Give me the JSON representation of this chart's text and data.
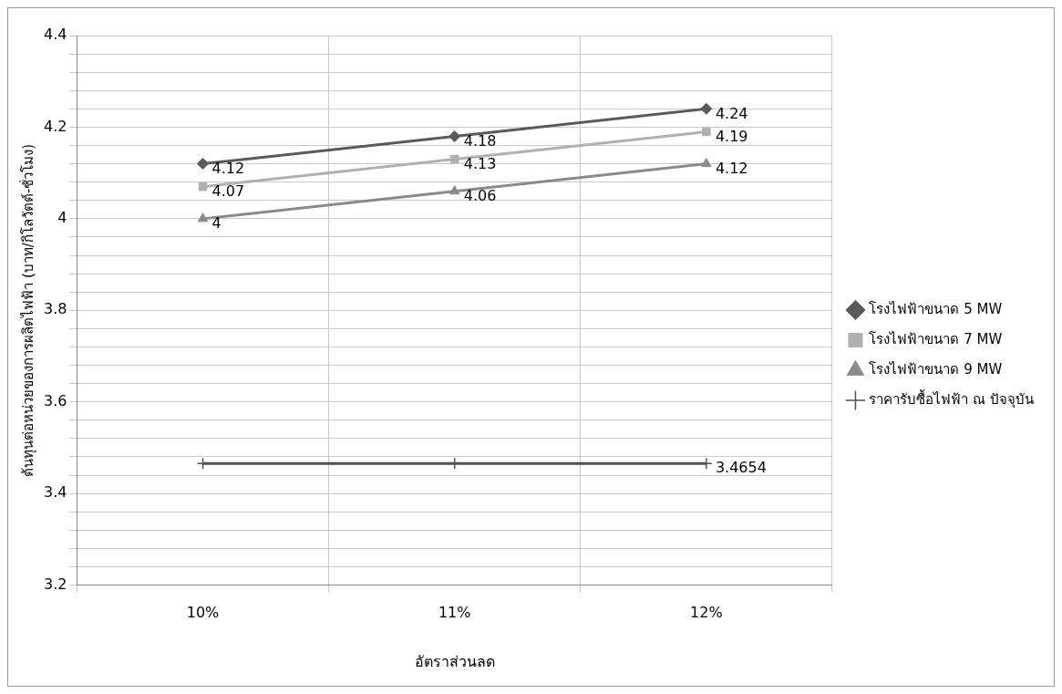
{
  "chart_data": {
    "type": "line",
    "xlabel": "อัตราส่วนลด",
    "ylabel": "ต้นทุนต่อหน่วยของการผลิตไฟฟ้า (บาท/กิโลวัตต์-ชั่วโมง)",
    "categories": [
      "10%",
      "11%",
      "12%"
    ],
    "series": [
      {
        "name": "โรงไฟฟ้าขนาด 5 MW",
        "color": "#5a5a5a",
        "marker": "diamond",
        "values": [
          4.12,
          4.18,
          4.24
        ],
        "value_labels": [
          "4.12",
          "4.18",
          "4.24"
        ]
      },
      {
        "name": "โรงไฟฟ้าขนาด 7 MW",
        "color": "#b0b0b0",
        "marker": "square",
        "values": [
          4.07,
          4.13,
          4.19
        ],
        "value_labels": [
          "4.07",
          "4.13",
          "4.19"
        ]
      },
      {
        "name": "โรงไฟฟ้าขนาด 9 MW",
        "color": "#8a8a8a",
        "marker": "triangle",
        "values": [
          4,
          4.06,
          4.12
        ],
        "value_labels": [
          "4",
          "4.06",
          "4.12"
        ]
      },
      {
        "name": "ราคารับซื้อไฟฟ้า ณ ปัจจุบัน",
        "color": "#505050",
        "marker": "cross",
        "values": [
          3.4654,
          3.4654,
          3.4654
        ],
        "value_labels": [
          null,
          null,
          "3.4654"
        ]
      }
    ],
    "ylim": [
      3.2,
      4.4
    ],
    "yticks": [
      3.2,
      {
        "value": 3.24,
        "label": null
      },
      {
        "value": 3.28,
        "label": null
      },
      {
        "value": 3.32,
        "label": null
      },
      {
        "value": 3.36,
        "label": null
      },
      3.4,
      {
        "value": 3.44,
        "label": null
      },
      {
        "value": 3.48,
        "label": null
      },
      {
        "value": 3.52,
        "label": null
      },
      {
        "value": 3.56,
        "label": null
      },
      3.6,
      {
        "value": 3.64,
        "label": null
      },
      {
        "value": 3.68,
        "label": null
      },
      {
        "value": 3.72,
        "label": null
      },
      {
        "value": 3.76,
        "label": null
      },
      3.8,
      {
        "value": 3.84,
        "label": null
      },
      {
        "value": 3.88,
        "label": null
      },
      {
        "value": 3.92,
        "label": null
      },
      {
        "value": 3.96,
        "label": null
      },
      4,
      {
        "value": 4.04,
        "label": null
      },
      {
        "value": 4.08,
        "label": null
      },
      {
        "value": 4.12,
        "label": null
      },
      {
        "value": 4.16,
        "label": null
      },
      4.2,
      {
        "value": 4.24,
        "label": null
      },
      {
        "value": 4.28,
        "label": null
      },
      {
        "value": 4.32,
        "label": null
      },
      {
        "value": 4.36,
        "label": null
      },
      4.4
    ],
    "grid": true,
    "legend": "right"
  }
}
